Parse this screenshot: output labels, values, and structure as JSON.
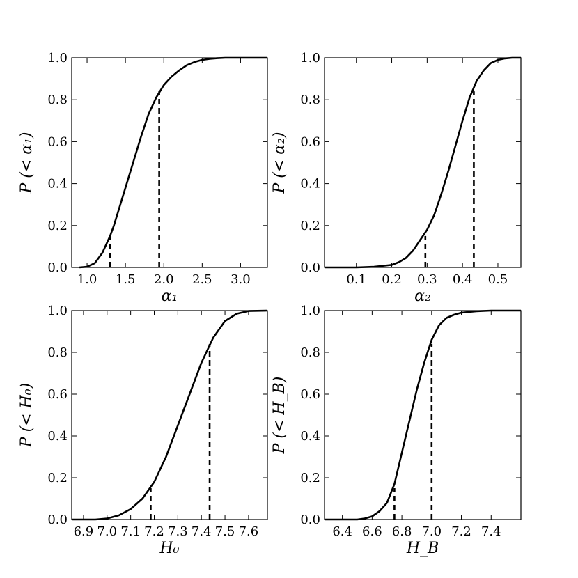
{
  "chart_data": [
    {
      "type": "line",
      "xlabel": "α₁",
      "ylabel": "P (< α₁)",
      "xlim": [
        0.8,
        3.35
      ],
      "ylim": [
        0.0,
        1.0
      ],
      "xticks": [
        1.0,
        1.5,
        2.0,
        2.5,
        3.0
      ],
      "xtick_labels": [
        "1.0",
        "1.5",
        "2.0",
        "2.5",
        "3.0"
      ],
      "yticks": [
        0.0,
        0.2,
        0.4,
        0.6,
        0.8,
        1.0
      ],
      "ytick_labels": [
        "0.0",
        "0.2",
        "0.4",
        "0.6",
        "0.8",
        "1.0"
      ],
      "grid": false,
      "curve": {
        "x": [
          0.9,
          1.0,
          1.1,
          1.2,
          1.25,
          1.3,
          1.35,
          1.4,
          1.5,
          1.6,
          1.7,
          1.8,
          1.9,
          2.0,
          2.1,
          2.2,
          2.3,
          2.4,
          2.5,
          2.6,
          2.7,
          2.8,
          3.35
        ],
        "y": [
          0.0,
          0.003,
          0.02,
          0.07,
          0.11,
          0.15,
          0.2,
          0.26,
          0.38,
          0.5,
          0.62,
          0.73,
          0.81,
          0.87,
          0.91,
          0.94,
          0.965,
          0.98,
          0.99,
          0.995,
          0.998,
          1.0,
          1.0
        ]
      },
      "markers": [
        {
          "x": 1.3,
          "y": 0.15
        },
        {
          "x": 1.94,
          "y": 0.84
        }
      ]
    },
    {
      "type": "line",
      "xlabel": "α₂",
      "ylabel": "P (< α₂)",
      "xlim": [
        0.01,
        0.565
      ],
      "ylim": [
        0.0,
        1.0
      ],
      "xticks": [
        0.1,
        0.2,
        0.3,
        0.4,
        0.5
      ],
      "xtick_labels": [
        "0.1",
        "0.2",
        "0.3",
        "0.4",
        "0.5"
      ],
      "yticks": [
        0.0,
        0.2,
        0.4,
        0.6,
        0.8,
        1.0
      ],
      "ytick_labels": [
        "0.0",
        "0.2",
        "0.4",
        "0.6",
        "0.8",
        "1.0"
      ],
      "grid": false,
      "curve": {
        "x": [
          0.01,
          0.1,
          0.15,
          0.2,
          0.22,
          0.24,
          0.26,
          0.28,
          0.3,
          0.32,
          0.34,
          0.36,
          0.38,
          0.4,
          0.42,
          0.44,
          0.46,
          0.48,
          0.5,
          0.52,
          0.54,
          0.565
        ],
        "y": [
          0.0,
          0.0,
          0.003,
          0.012,
          0.025,
          0.045,
          0.08,
          0.13,
          0.18,
          0.25,
          0.35,
          0.46,
          0.58,
          0.7,
          0.81,
          0.89,
          0.94,
          0.975,
          0.99,
          0.997,
          1.0,
          1.0
        ]
      },
      "markers": [
        {
          "x": 0.295,
          "y": 0.15
        },
        {
          "x": 0.432,
          "y": 0.84
        }
      ]
    },
    {
      "type": "line",
      "xlabel": "H₀",
      "ylabel": "P (< H₀)",
      "xlim": [
        6.85,
        7.68
      ],
      "ylim": [
        0.0,
        1.0
      ],
      "xticks": [
        6.9,
        7.0,
        7.1,
        7.2,
        7.3,
        7.4,
        7.5,
        7.6
      ],
      "xtick_labels": [
        "6.9",
        "7.0",
        "7.1",
        "7.2",
        "7.3",
        "7.4",
        "7.5",
        "7.6"
      ],
      "yticks": [
        0.0,
        0.2,
        0.4,
        0.6,
        0.8,
        1.0
      ],
      "ytick_labels": [
        "0.0",
        "0.2",
        "0.4",
        "0.6",
        "0.8",
        "1.0"
      ],
      "grid": false,
      "curve": {
        "x": [
          6.85,
          6.95,
          7.0,
          7.05,
          7.1,
          7.15,
          7.2,
          7.25,
          7.3,
          7.35,
          7.4,
          7.45,
          7.5,
          7.55,
          7.6,
          7.68
        ],
        "y": [
          0.0,
          0.0,
          0.005,
          0.02,
          0.05,
          0.1,
          0.18,
          0.3,
          0.45,
          0.6,
          0.75,
          0.87,
          0.95,
          0.985,
          0.998,
          1.0
        ]
      },
      "markers": [
        {
          "x": 7.185,
          "y": 0.15
        },
        {
          "x": 7.435,
          "y": 0.84
        }
      ]
    },
    {
      "type": "line",
      "xlabel": "H_B",
      "ylabel": "P (< H_B)",
      "xlim": [
        6.28,
        7.6
      ],
      "ylim": [
        0.0,
        1.0
      ],
      "xticks": [
        6.4,
        6.6,
        6.8,
        7.0,
        7.2,
        7.4
      ],
      "xtick_labels": [
        "6.4",
        "6.6",
        "6.8",
        "7.0",
        "7.2",
        "7.4"
      ],
      "yticks": [
        0.0,
        0.2,
        0.4,
        0.6,
        0.8,
        1.0
      ],
      "ytick_labels": [
        "0.0",
        "0.2",
        "0.4",
        "0.6",
        "0.8",
        "1.0"
      ],
      "grid": false,
      "curve": {
        "x": [
          6.28,
          6.5,
          6.55,
          6.6,
          6.65,
          6.7,
          6.75,
          6.8,
          6.85,
          6.9,
          6.95,
          7.0,
          7.05,
          7.1,
          7.15,
          7.2,
          7.3,
          7.4,
          7.6
        ],
        "y": [
          0.0,
          0.0,
          0.005,
          0.015,
          0.04,
          0.08,
          0.17,
          0.32,
          0.47,
          0.62,
          0.75,
          0.86,
          0.93,
          0.965,
          0.98,
          0.99,
          0.997,
          1.0,
          1.0
        ]
      },
      "markers": [
        {
          "x": 6.75,
          "y": 0.15
        },
        {
          "x": 7.0,
          "y": 0.84
        }
      ]
    }
  ]
}
